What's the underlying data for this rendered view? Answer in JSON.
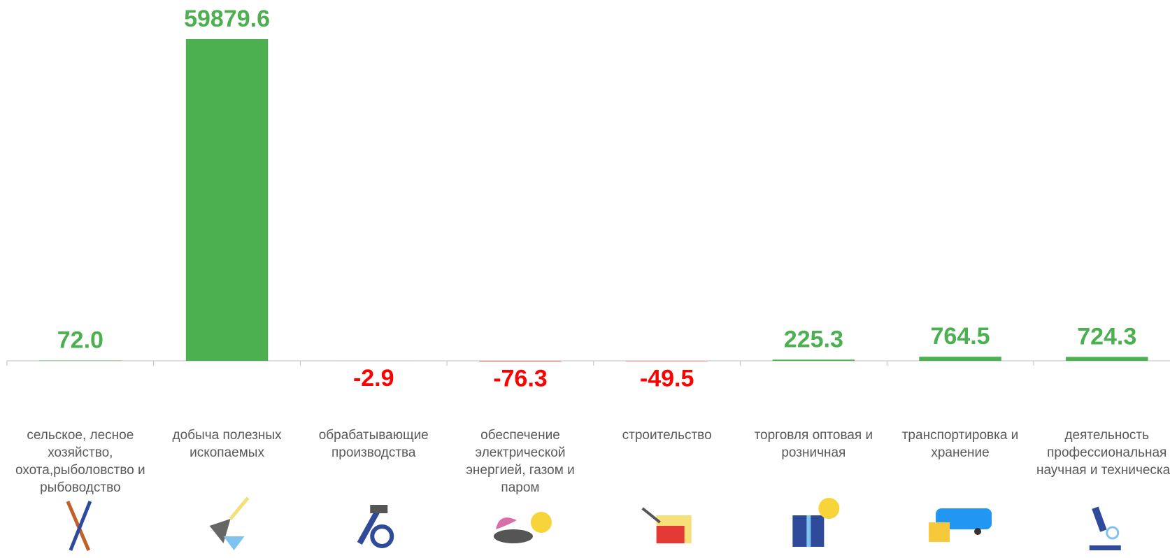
{
  "chart_data": {
    "type": "bar",
    "categories": [
      "сельское, лесное хозяйство, охота,рыболовство и рыбоводство",
      "добыча полезных ископаемых",
      "обрабатывающие производства",
      "обеспечение электрической энергией, газом и паром",
      "строительство",
      "торговля оптовая и розничная",
      "транспортировка и хранение",
      "деятельность профессиональная научная и техническая"
    ],
    "values": [
      72.0,
      59879.6,
      -2.9,
      -76.3,
      -49.5,
      225.3,
      764.5,
      724.3
    ],
    "value_labels": [
      "72.0",
      "59879.6",
      "-2.9",
      "-76.3",
      "-49.5",
      "225.3",
      "764.5",
      "724.3"
    ],
    "color": "#4CAF50",
    "negative_color": "#FF0000",
    "ylim": [
      -8000,
      66000
    ]
  }
}
